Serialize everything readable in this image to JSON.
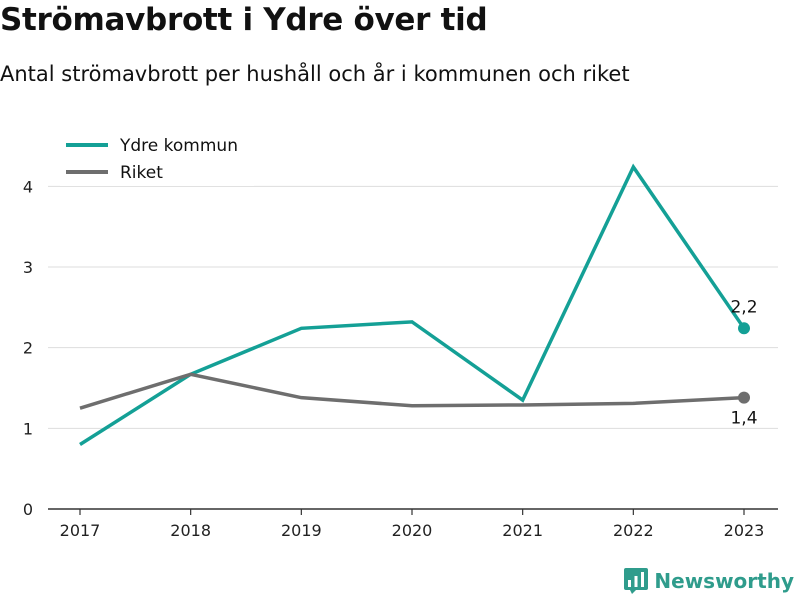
{
  "title": "Strömavbrott i Ydre över tid",
  "subtitle": "Antal strömavbrott per hushåll och år i kommunen och riket",
  "brand": {
    "name": "Newsworthy",
    "icon": "newsworthy-logo-icon",
    "color": "#2f9c8c"
  },
  "chart_data": {
    "type": "line",
    "x": [
      "2017",
      "2018",
      "2019",
      "2020",
      "2021",
      "2022",
      "2023"
    ],
    "series": [
      {
        "name": "Ydre kommun",
        "color": "#14a096",
        "values": [
          0.8,
          1.67,
          2.24,
          2.32,
          1.35,
          4.24,
          2.24
        ],
        "end_label": "2,2"
      },
      {
        "name": "Riket",
        "color": "#6e6e6e",
        "values": [
          1.25,
          1.67,
          1.38,
          1.28,
          1.29,
          1.31,
          1.38
        ],
        "end_label": "1,4"
      }
    ],
    "yticks": [
      "0",
      "1",
      "2",
      "3",
      "4"
    ],
    "ylim": [
      0,
      4.5
    ],
    "grid": true,
    "legend": "top-left"
  }
}
